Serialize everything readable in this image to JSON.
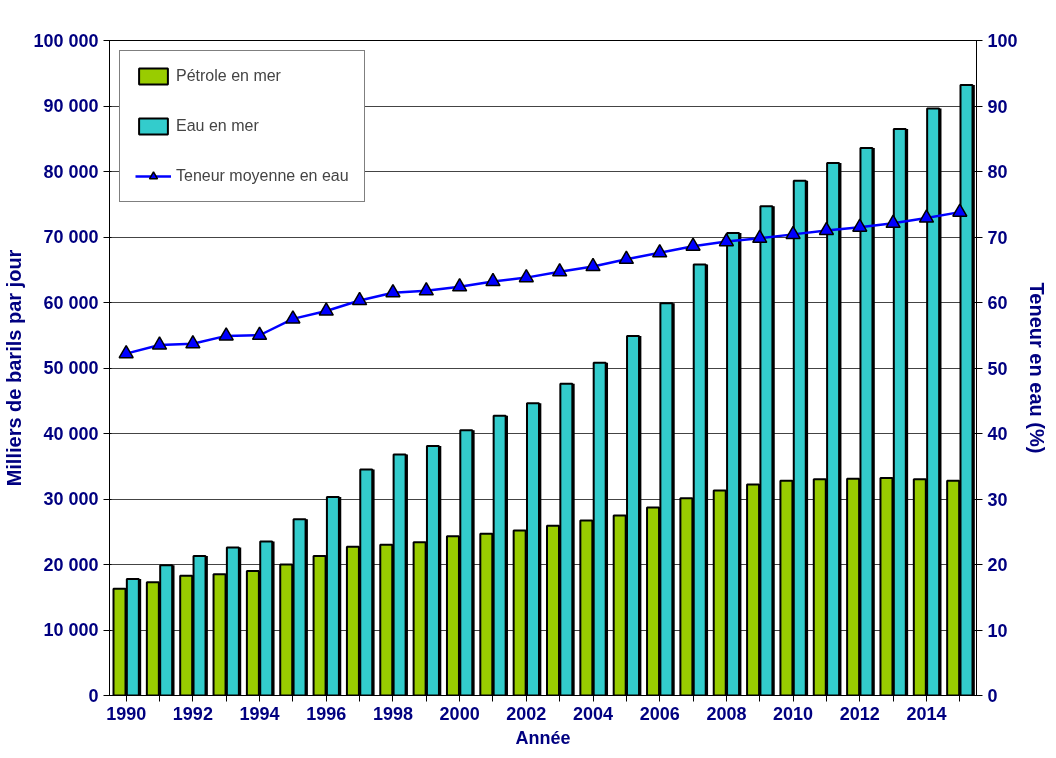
{
  "chart_data": {
    "type": "bar",
    "xlabel": "Année",
    "ylabel": "Milliers de barils par jour",
    "y2label": "Teneur en eau (%)",
    "categories": [
      "1990",
      null,
      "1992",
      null,
      "1994",
      null,
      "1996",
      null,
      "1998",
      null,
      "2000",
      null,
      "2002",
      null,
      "2004",
      null,
      "2006",
      null,
      "2008",
      null,
      "2010",
      null,
      "2012",
      null,
      "2014",
      null
    ],
    "series": [
      {
        "name": "Pétrole en mer",
        "color": "#99cc00",
        "values": [
          16300,
          17300,
          18300,
          18500,
          19000,
          20000,
          21300,
          22700,
          23000,
          23400,
          24300,
          24700,
          25200,
          25900,
          26700,
          27500,
          28700,
          30100,
          31300,
          32200,
          32800,
          33000,
          33100,
          33200,
          33000,
          32800
        ]
      },
      {
        "name": "Eau en mer",
        "color": "#33cccc",
        "values": [
          17800,
          19900,
          21300,
          22600,
          23500,
          26900,
          30300,
          34500,
          36800,
          38100,
          40500,
          42700,
          44600,
          47600,
          50800,
          54900,
          59900,
          65800,
          70600,
          74700,
          78600,
          81300,
          83600,
          86500,
          89600,
          93200
        ]
      },
      {
        "name": "Teneur moyenne en eau",
        "type": "line",
        "axis": "y2",
        "color": "#0000ff",
        "marker": "triangle",
        "values": [
          52.2,
          53.5,
          53.7,
          54.9,
          55.0,
          57.5,
          58.7,
          60.3,
          61.5,
          61.8,
          62.4,
          63.2,
          63.8,
          64.7,
          65.5,
          66.6,
          67.6,
          68.6,
          69.3,
          69.8,
          70.4,
          71.0,
          71.5,
          72.1,
          72.9,
          73.8
        ]
      }
    ],
    "ylim": [
      0,
      100000
    ],
    "yticks": [
      0,
      {
        "value": 10000,
        "label": "10 000"
      },
      {
        "value": 20000,
        "label": "20 000"
      },
      {
        "value": 30000,
        "label": "30 000"
      },
      {
        "value": 40000,
        "label": "40 000"
      },
      {
        "value": 50000,
        "label": "50 000"
      },
      {
        "value": 60000,
        "label": "60 000"
      },
      {
        "value": 70000,
        "label": "70 000"
      },
      {
        "value": 80000,
        "label": "80 000"
      },
      {
        "value": 90000,
        "label": "90 000"
      },
      {
        "value": 100000,
        "label": "100 000"
      }
    ],
    "y2lim": [
      0,
      100
    ],
    "y2ticks": [
      0,
      10,
      20,
      30,
      40,
      50,
      60,
      70,
      80,
      90,
      100
    ],
    "grid": "y",
    "legend": "top left"
  }
}
